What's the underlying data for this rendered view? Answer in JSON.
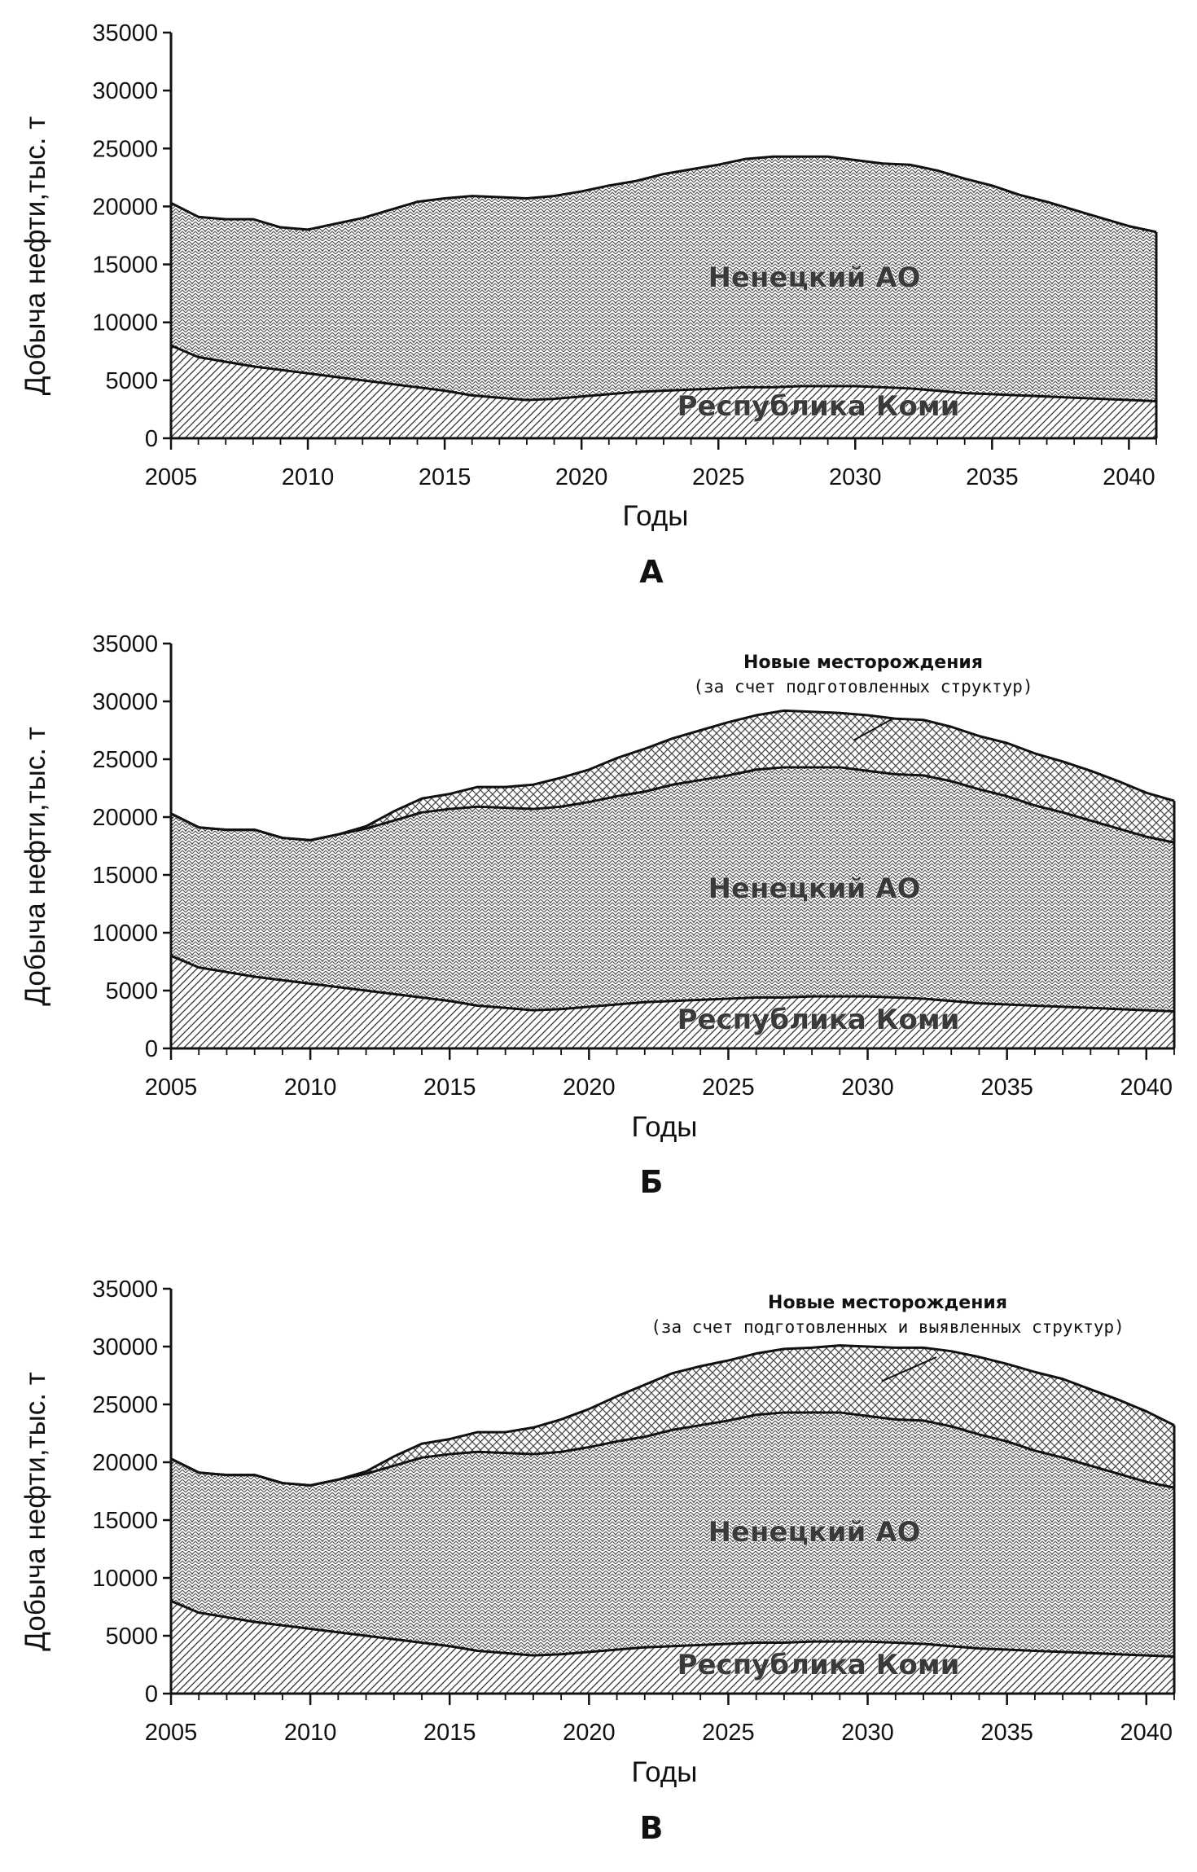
{
  "chart_data": [
    {
      "type": "area",
      "stacked": true,
      "panel_label": "А",
      "xlabel": "Годы",
      "ylabel": "Добыча нефти,тыс. т",
      "xlim": [
        2005,
        2041
      ],
      "ylim": [
        0,
        35000
      ],
      "x_ticks": [
        2005,
        2010,
        2015,
        2020,
        2025,
        2030,
        2035,
        2040
      ],
      "y_ticks": [
        0,
        5000,
        10000,
        15000,
        20000,
        25000,
        30000,
        35000
      ],
      "x": [
        2005,
        2006,
        2007,
        2008,
        2009,
        2010,
        2011,
        2012,
        2013,
        2014,
        2015,
        2016,
        2017,
        2018,
        2019,
        2020,
        2021,
        2022,
        2023,
        2024,
        2025,
        2026,
        2027,
        2028,
        2029,
        2030,
        2031,
        2032,
        2033,
        2034,
        2035,
        2036,
        2037,
        2038,
        2039,
        2040,
        2041
      ],
      "series": [
        {
          "name": "Республика Коми",
          "values": [
            8000,
            7000,
            6600,
            6200,
            5900,
            5600,
            5300,
            5000,
            4700,
            4400,
            4100,
            3700,
            3500,
            3300,
            3400,
            3600,
            3800,
            4000,
            4100,
            4200,
            4300,
            4400,
            4400,
            4500,
            4500,
            4500,
            4400,
            4300,
            4100,
            3900,
            3800,
            3700,
            3600,
            3500,
            3400,
            3300,
            3200
          ]
        },
        {
          "name": "Ненецкий АО",
          "values": [
            12300,
            12100,
            12300,
            12700,
            12300,
            12400,
            13200,
            14000,
            15000,
            16000,
            16600,
            17200,
            17300,
            17400,
            17500,
            17700,
            18000,
            18200,
            18700,
            19000,
            19300,
            19700,
            19900,
            19800,
            19800,
            19500,
            19300,
            19300,
            19000,
            18500,
            18000,
            17300,
            16800,
            16200,
            15600,
            15000,
            14600
          ]
        }
      ]
    },
    {
      "type": "area",
      "stacked": true,
      "panel_label": "Б",
      "xlabel": "Годы",
      "ylabel": "Добыча нефти,тыс. т",
      "xlim": [
        2005,
        2041
      ],
      "ylim": [
        0,
        35000
      ],
      "x_ticks": [
        2005,
        2010,
        2015,
        2020,
        2025,
        2030,
        2035,
        2040
      ],
      "y_ticks": [
        0,
        5000,
        10000,
        15000,
        20000,
        25000,
        30000,
        35000
      ],
      "x": [
        2005,
        2006,
        2007,
        2008,
        2009,
        2010,
        2011,
        2012,
        2013,
        2014,
        2015,
        2016,
        2017,
        2018,
        2019,
        2020,
        2021,
        2022,
        2023,
        2024,
        2025,
        2026,
        2027,
        2028,
        2029,
        2030,
        2031,
        2032,
        2033,
        2034,
        2035,
        2036,
        2037,
        2038,
        2039,
        2040,
        2041
      ],
      "series": [
        {
          "name": "Республика Коми",
          "values": [
            8000,
            7000,
            6600,
            6200,
            5900,
            5600,
            5300,
            5000,
            4700,
            4400,
            4100,
            3700,
            3500,
            3300,
            3400,
            3600,
            3800,
            4000,
            4100,
            4200,
            4300,
            4400,
            4400,
            4500,
            4500,
            4500,
            4400,
            4300,
            4100,
            3900,
            3800,
            3700,
            3600,
            3500,
            3400,
            3300,
            3200
          ]
        },
        {
          "name": "Ненецкий АО",
          "values": [
            12300,
            12100,
            12300,
            12700,
            12300,
            12400,
            13200,
            14000,
            15000,
            16000,
            16600,
            17200,
            17300,
            17400,
            17500,
            17700,
            18000,
            18200,
            18700,
            19000,
            19300,
            19700,
            19900,
            19800,
            19800,
            19500,
            19300,
            19300,
            19000,
            18500,
            18000,
            17300,
            16800,
            16200,
            15600,
            15000,
            14600
          ]
        },
        {
          "name": "Новые месторождения",
          "values": [
            0,
            0,
            0,
            0,
            0,
            0,
            0,
            200,
            800,
            1200,
            1300,
            1700,
            1800,
            2100,
            2500,
            2800,
            3300,
            3700,
            4000,
            4300,
            4600,
            4700,
            4900,
            4800,
            4700,
            4800,
            4800,
            4800,
            4700,
            4600,
            4600,
            4500,
            4400,
            4300,
            4100,
            3800,
            3600
          ]
        }
      ],
      "annotation": {
        "title": "Новые месторождения",
        "subtitle": "(за счет подготовленных структур)",
        "points_to_x": 2029.5
      }
    },
    {
      "type": "area",
      "stacked": true,
      "panel_label": "В",
      "xlabel": "Годы",
      "ylabel": "Добыча нефти,тыс. т",
      "xlim": [
        2005,
        2041
      ],
      "ylim": [
        0,
        35000
      ],
      "x_ticks": [
        2005,
        2010,
        2015,
        2020,
        2025,
        2030,
        2035,
        2040
      ],
      "y_ticks": [
        0,
        5000,
        10000,
        15000,
        20000,
        25000,
        30000,
        35000
      ],
      "x": [
        2005,
        2006,
        2007,
        2008,
        2009,
        2010,
        2011,
        2012,
        2013,
        2014,
        2015,
        2016,
        2017,
        2018,
        2019,
        2020,
        2021,
        2022,
        2023,
        2024,
        2025,
        2026,
        2027,
        2028,
        2029,
        2030,
        2031,
        2032,
        2033,
        2034,
        2035,
        2036,
        2037,
        2038,
        2039,
        2040,
        2041
      ],
      "series": [
        {
          "name": "Республика Коми",
          "values": [
            8000,
            7000,
            6600,
            6200,
            5900,
            5600,
            5300,
            5000,
            4700,
            4400,
            4100,
            3700,
            3500,
            3300,
            3400,
            3600,
            3800,
            4000,
            4100,
            4200,
            4300,
            4400,
            4400,
            4500,
            4500,
            4500,
            4400,
            4300,
            4100,
            3900,
            3800,
            3700,
            3600,
            3500,
            3400,
            3300,
            3200
          ]
        },
        {
          "name": "Ненецкий АО",
          "values": [
            12300,
            12100,
            12300,
            12700,
            12300,
            12400,
            13200,
            14000,
            15000,
            16000,
            16600,
            17200,
            17300,
            17400,
            17500,
            17700,
            18000,
            18200,
            18700,
            19000,
            19300,
            19700,
            19900,
            19800,
            19800,
            19500,
            19300,
            19300,
            19000,
            18500,
            18000,
            17300,
            16800,
            16200,
            15600,
            15000,
            14600
          ]
        },
        {
          "name": "Новые месторождения",
          "values": [
            0,
            0,
            0,
            0,
            0,
            0,
            0,
            200,
            800,
            1200,
            1300,
            1700,
            1800,
            2300,
            2800,
            3300,
            3900,
            4500,
            4900,
            5100,
            5200,
            5300,
            5500,
            5600,
            5800,
            6000,
            6200,
            6300,
            6500,
            6700,
            6700,
            6800,
            6800,
            6600,
            6400,
            6100,
            5400
          ]
        }
      ],
      "annotation": {
        "title": "Новые месторождения",
        "subtitle": "(за счет подготовленных и выявленных структур)",
        "points_to_x": 2030.5
      }
    }
  ]
}
